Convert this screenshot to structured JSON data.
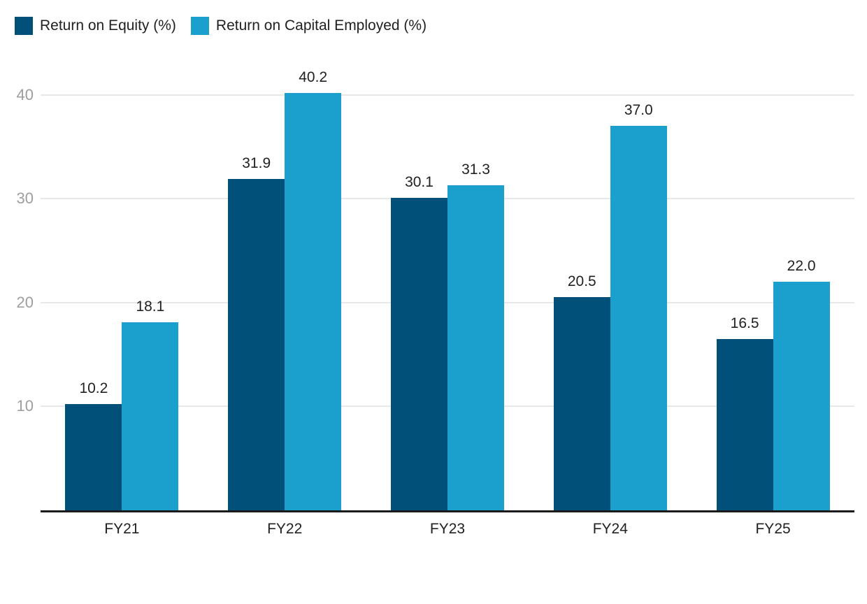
{
  "chart_data": {
    "type": "bar",
    "categories": [
      "FY21",
      "FY22",
      "FY23",
      "FY24",
      "FY25"
    ],
    "series": [
      {
        "name": "Return on Equity (%)",
        "color": "#015079",
        "values": [
          10.2,
          31.9,
          30.1,
          20.5,
          16.5
        ],
        "labels": [
          "10.2",
          "31.9",
          "30.1",
          "20.5",
          "16.5"
        ]
      },
      {
        "name": "Return on Capital Employed (%)",
        "color": "#1BA0CD",
        "values": [
          18.1,
          40.2,
          31.3,
          37.0,
          22.0
        ],
        "labels": [
          "18.1",
          "40.2",
          "31.3",
          "37.0",
          "22.0"
        ]
      }
    ],
    "yticks": [
      "10",
      "20",
      "30",
      "40"
    ],
    "ytick_values": [
      10,
      20,
      30,
      40
    ],
    "ylim": [
      0,
      42
    ],
    "grid": true,
    "legend_position": "top-left",
    "colors": {
      "grid": "#E8E8E8",
      "axis_line": "#1A1A1A",
      "tick_label": "#9E9E9E",
      "value_label": "#212121",
      "category_label": "#212121"
    }
  }
}
